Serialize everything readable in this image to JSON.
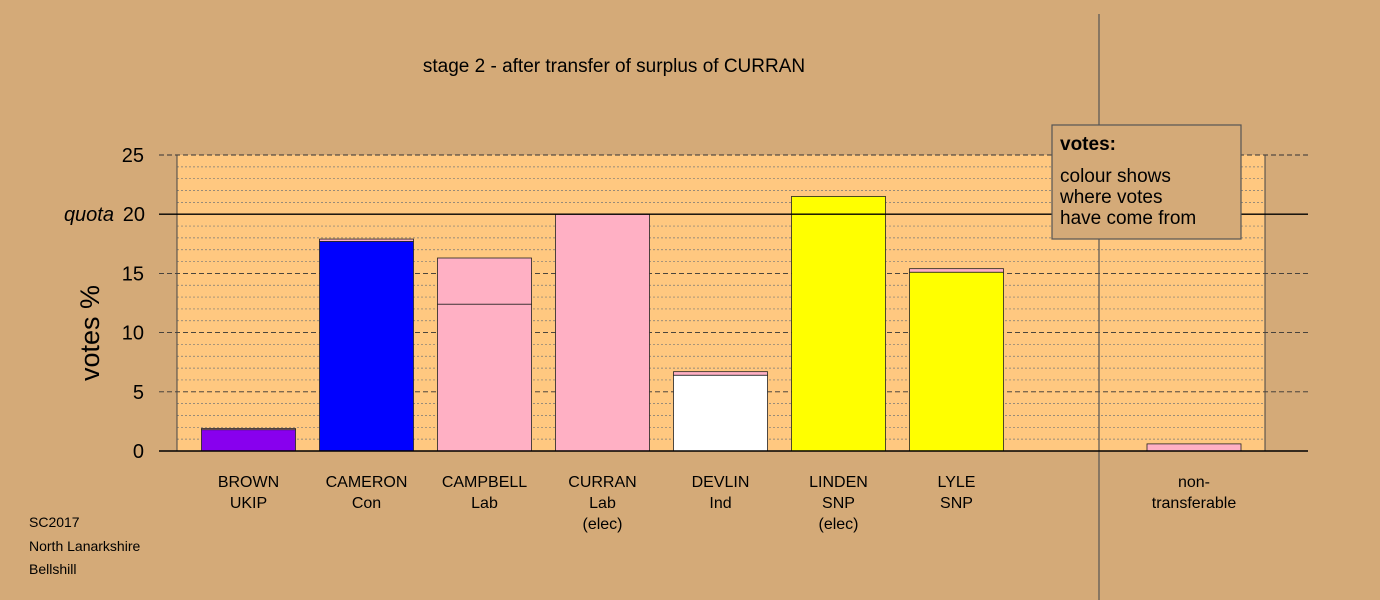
{
  "chart_data": {
    "type": "bar",
    "title": "stage 2 - after transfer of surplus of CURRAN",
    "ylabel": "votes %",
    "quota_label": "quota",
    "quota": 20,
    "ylim": [
      0,
      25
    ],
    "yticks": [
      0,
      5,
      10,
      15,
      20,
      25
    ],
    "grid": true,
    "bars": [
      {
        "name": "BROWN",
        "sub": [
          "UKIP"
        ],
        "segments": [
          {
            "value": 1.8,
            "color": "#8800ee"
          },
          {
            "value": 0.1,
            "color": "#ffb0c4"
          }
        ]
      },
      {
        "name": "CAMERON",
        "sub": [
          "Con"
        ],
        "segments": [
          {
            "value": 17.7,
            "color": "#0000ff"
          },
          {
            "value": 0.2,
            "color": "#ffb0c4"
          }
        ]
      },
      {
        "name": "CAMPBELL",
        "sub": [
          "Lab"
        ],
        "segments": [
          {
            "value": 12.4,
            "color": "#ffb0c4"
          },
          {
            "value": 3.9,
            "color": "#ffb0c4"
          }
        ]
      },
      {
        "name": "CURRAN",
        "sub": [
          "Lab",
          "(elec)"
        ],
        "segments": [
          {
            "value": 20.0,
            "color": "#ffb0c4"
          }
        ]
      },
      {
        "name": "DEVLIN",
        "sub": [
          "Ind"
        ],
        "segments": [
          {
            "value": 6.4,
            "color": "#ffffff"
          },
          {
            "value": 0.3,
            "color": "#ffb0c4"
          }
        ]
      },
      {
        "name": "LINDEN",
        "sub": [
          "SNP",
          "(elec)"
        ],
        "segments": [
          {
            "value": 21.5,
            "color": "#ffff00"
          }
        ]
      },
      {
        "name": "LYLE",
        "sub": [
          "SNP"
        ],
        "segments": [
          {
            "value": 15.1,
            "color": "#ffff00"
          },
          {
            "value": 0.3,
            "color": "#ffb0c4"
          }
        ]
      },
      {
        "name": "non-",
        "sub": [
          "transferable"
        ],
        "segments": [
          {
            "value": 0.6,
            "color": "#ffb0c4"
          }
        ]
      }
    ]
  },
  "legend": {
    "title": "votes:",
    "lines": [
      "colour shows",
      "where votes",
      "have come from"
    ]
  },
  "footer": [
    "SC2017",
    "North Lanarkshire",
    "Bellshill"
  ]
}
